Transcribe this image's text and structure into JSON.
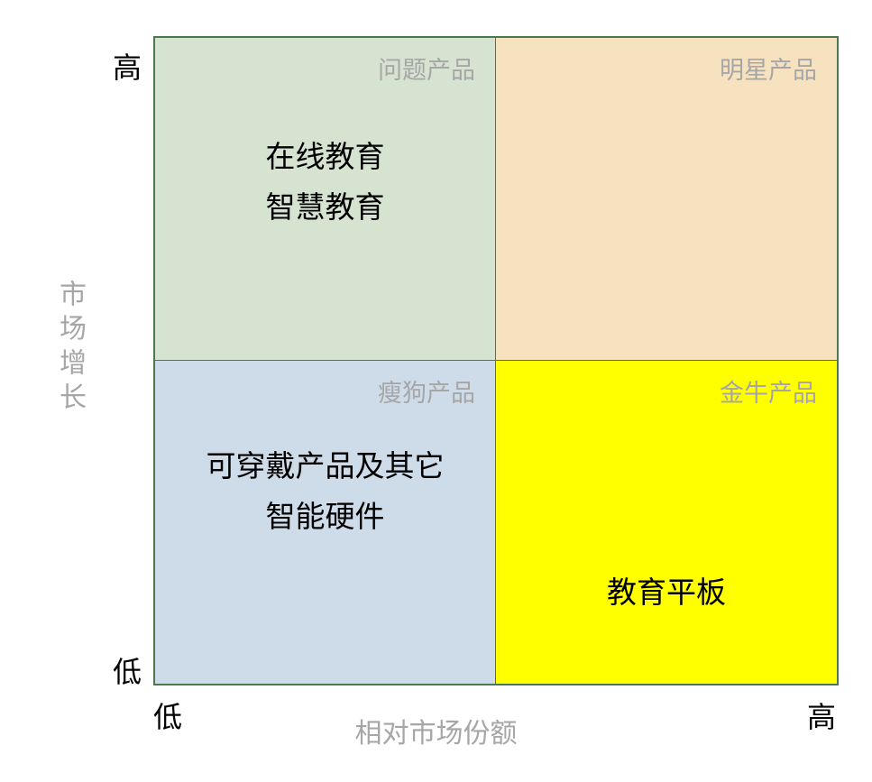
{
  "matrix": {
    "type": "bcg-matrix",
    "border_color": "#4a7a4a",
    "background_color": "#ffffff",
    "axes": {
      "x": {
        "label": "相对市场份额",
        "low_label": "低",
        "high_label": "高",
        "label_color": "#a6a6a6",
        "endpoint_color": "#000000",
        "label_fontsize": 30,
        "endpoint_fontsize": 32
      },
      "y": {
        "label": "市场增长",
        "low_label": "低",
        "high_label": "高",
        "label_color": "#a6a6a6",
        "endpoint_color": "#000000",
        "label_fontsize": 30,
        "endpoint_fontsize": 32
      }
    },
    "quadrants": {
      "top_left": {
        "label": "问题产品",
        "bg_color": "#d5e3d0",
        "content_line1": "在线教育",
        "content_line2": "智慧教育"
      },
      "top_right": {
        "label": "明星产品",
        "bg_color": "#f7e2c0",
        "content": ""
      },
      "bottom_left": {
        "label": "瘦狗产品",
        "bg_color": "#cedbe9",
        "content_line1": "可穿戴产品及其它",
        "content_line2": "智能硬件"
      },
      "bottom_right": {
        "label": "金牛产品",
        "bg_color": "#ffff00",
        "content": "教育平板"
      }
    },
    "styling": {
      "quadrant_label_color": "#a6a6a6",
      "quadrant_label_fontsize": 27,
      "content_fontsize": 33,
      "content_color": "#000000",
      "font_family": "SimSun"
    }
  }
}
